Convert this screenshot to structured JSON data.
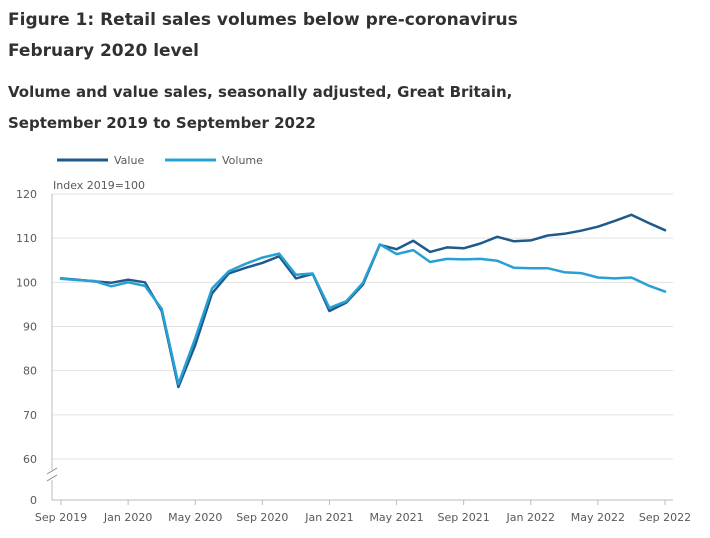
{
  "title": "Figure 1: Retail sales volumes below pre-coronavirus February 2020 level",
  "subtitle": "Volume and value sales, seasonally adjusted, Great Britain, September 2019 to September 2022",
  "colors": {
    "value": "#1f5a8c",
    "volume": "#27a0d4",
    "grid": "#e2e2e2",
    "axis": "#bbbbbb",
    "text": "#595959"
  },
  "chart_data": {
    "type": "line",
    "ylabel": "Index 2019=100",
    "ylim": [
      0,
      120
    ],
    "axis_break": true,
    "yticks": [
      0,
      60,
      70,
      80,
      90,
      100,
      110,
      120
    ],
    "x": [
      "Sep 2019",
      "Oct 2019",
      "Nov 2019",
      "Dec 2019",
      "Jan 2020",
      "Feb 2020",
      "Mar 2020",
      "Apr 2020",
      "May 2020",
      "Jun 2020",
      "Jul 2020",
      "Aug 2020",
      "Sep 2020",
      "Oct 2020",
      "Nov 2020",
      "Dec 2020",
      "Jan 2021",
      "Feb 2021",
      "Mar 2021",
      "Apr 2021",
      "May 2021",
      "Jun 2021",
      "Jul 2021",
      "Aug 2021",
      "Sep 2021",
      "Oct 2021",
      "Nov 2021",
      "Dec 2021",
      "Jan 2022",
      "Feb 2022",
      "Mar 2022",
      "Apr 2022",
      "May 2022",
      "Jun 2022",
      "Jul 2022",
      "Aug 2022",
      "Sep 2022"
    ],
    "xticks": [
      "Sep 2019",
      "Jan 2020",
      "May 2020",
      "Sep 2020",
      "Jan 2021",
      "May 2021",
      "Sep 2021",
      "Jan 2022",
      "May 2022",
      "Sep 2022"
    ],
    "legend_position": "top-left",
    "grid": true,
    "series": [
      {
        "name": "Value",
        "color": "#1f5a8c",
        "values": [
          100.9,
          100.6,
          100.2,
          99.9,
          100.6,
          100.0,
          93.5,
          76.3,
          85.8,
          97.5,
          102.0,
          103.3,
          104.4,
          105.9,
          100.9,
          101.9,
          93.5,
          95.4,
          99.5,
          108.5,
          107.5,
          109.4,
          106.9,
          107.9,
          107.7,
          108.8,
          110.3,
          109.3,
          109.5,
          110.6,
          111.0,
          111.7,
          112.6,
          113.9,
          115.3,
          113.5,
          111.8
        ]
      },
      {
        "name": "Volume",
        "color": "#27a0d4",
        "values": [
          100.8,
          100.5,
          100.3,
          99.1,
          100.0,
          99.2,
          94.0,
          77.0,
          87.3,
          98.6,
          102.5,
          104.2,
          105.6,
          106.5,
          101.7,
          102.0,
          94.2,
          95.7,
          99.9,
          108.6,
          106.4,
          107.3,
          104.6,
          105.3,
          105.2,
          105.3,
          104.9,
          103.3,
          103.2,
          103.2,
          102.3,
          102.1,
          101.1,
          100.9,
          101.1,
          99.3,
          97.9
        ]
      }
    ]
  }
}
